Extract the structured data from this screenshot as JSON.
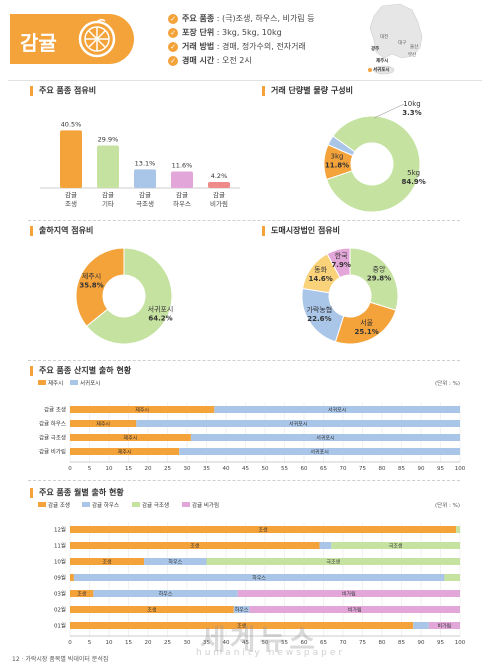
{
  "header": {
    "title": "감귤",
    "info": [
      {
        "key": "주요 품종",
        "value": "(극)조생, 하우스, 비가림 등"
      },
      {
        "key": "포장 단위",
        "value": "3kg, 5kg, 10kg"
      },
      {
        "key": "거래 방법",
        "value": "경매, 정가수의, 전자거래"
      },
      {
        "key": "경매 시간",
        "value": "오전 2시"
      }
    ],
    "map_labels": [
      "대전",
      "대구",
      "울산",
      "광주",
      "부산",
      "제주시",
      "서귀포시"
    ]
  },
  "footer": "12 · 가락시장 품목별 빅데이터 분석집",
  "watermark": {
    "main": "세계뉴스",
    "sub": "humanity newspaper"
  },
  "colors": {
    "orange": "#f4a23a",
    "green": "#c5e2a0",
    "blue": "#a9c5e8",
    "pink": "#e3a6d8",
    "red": "#ef8a8a",
    "yellow": "#f9d27a"
  },
  "chart_data": [
    {
      "type": "bar",
      "title": "주요 품종 점유비",
      "categories": [
        "감귤 조생",
        "감귤 기타",
        "감귤 극조생",
        "감귤 하우스",
        "감귤 비가림"
      ],
      "values": [
        40.5,
        29.9,
        13.1,
        11.6,
        4.2
      ],
      "labels": [
        "40.5%",
        "29.9%",
        "13.1%",
        "11.6%",
        "4.2%"
      ]
    },
    {
      "type": "pie",
      "title": "거래 단량별 물량 구성비",
      "slices": [
        {
          "name": "5kg",
          "value": 84.9,
          "label": "84.9%"
        },
        {
          "name": "3kg",
          "value": 11.8,
          "label": "11.8%"
        },
        {
          "name": "10kg",
          "value": 3.3,
          "label": "3.3%"
        }
      ]
    },
    {
      "type": "pie",
      "title": "출하지역 점유비",
      "slices": [
        {
          "name": "서귀포시",
          "value": 64.2,
          "label": "64.2%"
        },
        {
          "name": "제주시",
          "value": 35.8,
          "label": "35.8%"
        }
      ]
    },
    {
      "type": "pie",
      "title": "도매시장법인 점유비",
      "slices": [
        {
          "name": "중앙",
          "value": 29.8,
          "label": "29.8%"
        },
        {
          "name": "서울",
          "value": 25.1,
          "label": "25.1%"
        },
        {
          "name": "가락농협",
          "value": 22.6,
          "label": "22.6%"
        },
        {
          "name": "동화",
          "value": 14.6,
          "label": "14.6%"
        },
        {
          "name": "한국",
          "value": 7.9,
          "label": "7.9%"
        }
      ]
    },
    {
      "type": "bar",
      "title": "주요 품종 산지별 출하 현황",
      "unit": "(단위 : %)",
      "legend": [
        "제주시",
        "서귀포시"
      ],
      "categories": [
        "감귤 조생",
        "감귤 하우스",
        "감귤 극조생",
        "감귤 비가림"
      ],
      "series": [
        {
          "name": "제주시",
          "values": [
            37,
            17,
            31,
            28
          ]
        },
        {
          "name": "서귀포시",
          "values": [
            63,
            83,
            69,
            72
          ]
        }
      ],
      "xticks": [
        "0",
        "5",
        "10",
        "15",
        "20",
        "25",
        "30",
        "35",
        "40",
        "45",
        "50",
        "55",
        "60",
        "65",
        "70",
        "75",
        "80",
        "85",
        "90",
        "95",
        "100"
      ],
      "xlim": [
        0,
        100
      ]
    },
    {
      "type": "bar",
      "title": "주요 품종 월별 출하 현황",
      "unit": "(단위 : %)",
      "legend": [
        "감귤 조생",
        "감귤 하우스",
        "감귤 극조생",
        "감귤 비가림"
      ],
      "categories": [
        "12월",
        "11월",
        "10월",
        "09월",
        "03월",
        "02월",
        "01월"
      ],
      "series": [
        {
          "name": "감귤 조생",
          "values": [
            99,
            64,
            19,
            1,
            6,
            42,
            88
          ]
        },
        {
          "name": "감귤 하우스",
          "values": [
            0,
            3,
            16,
            95,
            37,
            4,
            4
          ]
        },
        {
          "name": "감귤 극조생",
          "values": [
            1,
            33,
            65,
            4,
            0,
            0,
            0
          ]
        },
        {
          "name": "감귤 비가림",
          "values": [
            0,
            0,
            0,
            0,
            57,
            54,
            8
          ]
        }
      ],
      "bar_labels": [
        [
          "조생",
          "",
          "",
          ""
        ],
        [
          "조생",
          "",
          "극조생",
          ""
        ],
        [
          "조생",
          "하우스",
          "극조생",
          ""
        ],
        [
          "",
          "하우스",
          "",
          ""
        ],
        [
          "조생",
          "하우스",
          "",
          "비가림"
        ],
        [
          "조생",
          "하우스",
          "",
          "비가림"
        ],
        [
          "조생",
          "",
          "",
          "비가림"
        ]
      ],
      "xticks": [
        "0",
        "5",
        "10",
        "15",
        "20",
        "25",
        "30",
        "35",
        "40",
        "45",
        "50",
        "55",
        "60",
        "65",
        "70",
        "75",
        "80",
        "85",
        "90",
        "95",
        "100"
      ],
      "xlim": [
        0,
        100
      ]
    }
  ]
}
